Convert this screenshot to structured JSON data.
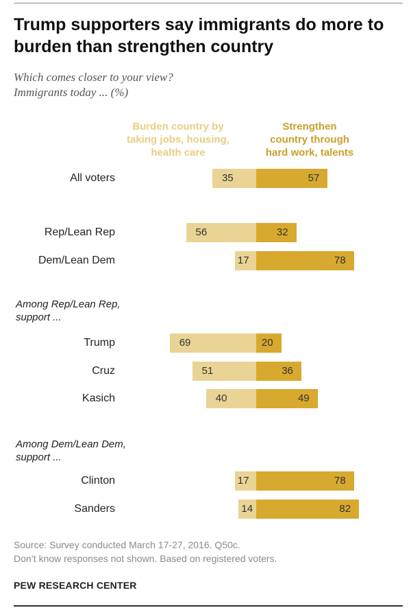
{
  "title": "Trump supporters say immigrants do more to burden than strengthen country",
  "subtitle_line1": "Which comes closer to your view?",
  "subtitle_line2": "Immigrants today ... (%)",
  "header_burden_lines": [
    "Burden country by",
    "taking jobs, housing,",
    "health care"
  ],
  "header_strength_lines": [
    "Strengthen",
    "country through",
    "hard work, talents"
  ],
  "group_titles": [
    {
      "line1": "Among Rep/Lean Rep,",
      "line2": "support ..."
    },
    {
      "line1": "Among Dem/Lean Dem,",
      "line2": "support ..."
    }
  ],
  "colors": {
    "burden": "#e9d495",
    "strength": "#d8a92f",
    "burden_header": "#e7cf85",
    "strength_header": "#c9a12a"
  },
  "chart_data": {
    "type": "bar",
    "orientation": "horizontal-diverging",
    "categories": [
      "All voters",
      "Rep/Lean Rep",
      "Dem/Lean Dem",
      "Trump",
      "Cruz",
      "Kasich",
      "Clinton",
      "Sanders"
    ],
    "series": [
      {
        "name": "Burden country by taking jobs, housing, health care",
        "values": [
          35,
          56,
          17,
          69,
          51,
          40,
          17,
          14
        ]
      },
      {
        "name": "Strengthen country through hard work, talents",
        "values": [
          57,
          32,
          78,
          20,
          36,
          49,
          78,
          82
        ]
      }
    ]
  },
  "source_line1": "Source: Survey conducted March 17-27, 2016. Q50c.",
  "source_line2": "Don’t know responses not shown. Based on registered voters.",
  "brand": "PEW RESEARCH CENTER"
}
